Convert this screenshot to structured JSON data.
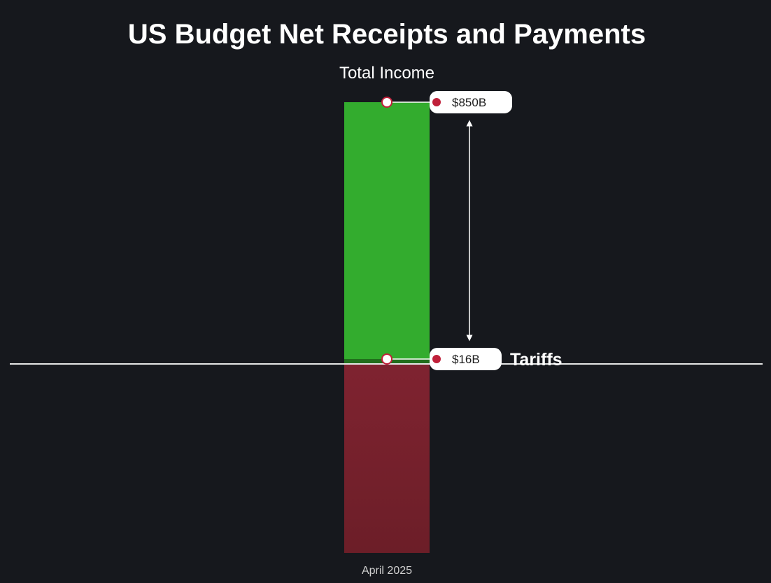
{
  "chart_data": {
    "type": "bar",
    "title": "US Budget Net Receipts and Payments",
    "categories": [
      "April 2025"
    ],
    "series": [
      {
        "name": "Total Income",
        "values": [
          850
        ],
        "color": "#33ac2e",
        "value_label": "$850B"
      },
      {
        "name": "Tariffs",
        "values": [
          16
        ],
        "color": "#216e1c",
        "value_label": "$16B"
      },
      {
        "values": [
          -850
        ],
        "color": "#7c2230"
      }
    ],
    "annotations": [
      "Tariffs"
    ],
    "baseline_color": "#e6e6e6",
    "marker_color": "#c0203a",
    "grid": false
  }
}
